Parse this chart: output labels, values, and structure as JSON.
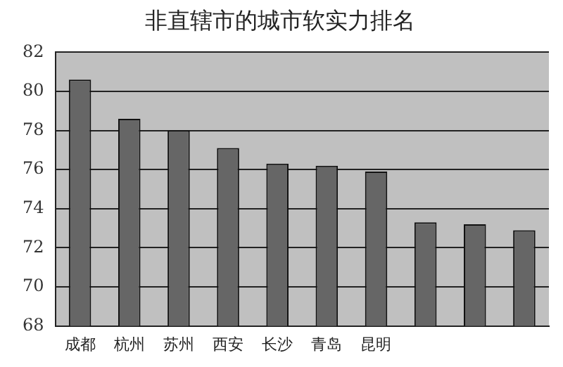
{
  "chart_data": {
    "type": "bar",
    "title": "非直辖市的城市软实力排名",
    "categories": [
      "成都",
      "杭州",
      "苏州",
      "西安",
      "长沙",
      "青岛",
      "昆明",
      null,
      null,
      null
    ],
    "values": [
      80.6,
      78.6,
      78.0,
      77.1,
      76.3,
      76.2,
      75.9,
      73.3,
      73.2,
      72.9
    ],
    "color": "#666666",
    "ylim": [
      68,
      82
    ],
    "yticks": [
      68,
      70,
      72,
      74,
      76,
      78,
      80,
      82
    ],
    "grid": "y"
  }
}
